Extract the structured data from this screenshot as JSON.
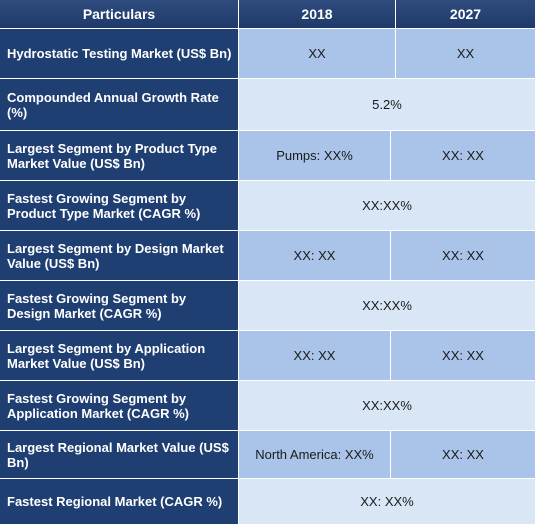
{
  "header": {
    "col_particulars": "Particulars",
    "col_2018": "2018",
    "col_2027": "2027"
  },
  "rows": [
    {
      "label": "Hydrostatic Testing Market (US$ Bn)",
      "v2018": "XX",
      "v2027": "XX"
    },
    {
      "label": "Compounded Annual Growth Rate (%)",
      "merged": "5.2%"
    },
    {
      "label": "Largest Segment by Product Type Market Value (US$ Bn)",
      "v2018": "Pumps: XX%",
      "v2027": "XX: XX"
    },
    {
      "label": "Fastest Growing Segment by Product Type Market (CAGR %)",
      "merged": "XX:XX%"
    },
    {
      "label": "Largest Segment by Design Market Value (US$ Bn)",
      "v2018": "XX: XX",
      "v2027": "XX: XX"
    },
    {
      "label": "Fastest Growing Segment by Design Market (CAGR %)",
      "merged": "XX:XX%"
    },
    {
      "label": "Largest Segment by Application Market Value (US$ Bn)",
      "v2018": "XX: XX",
      "v2027": "XX: XX"
    },
    {
      "label": "Fastest Growing Segment by Application Market (CAGR %)",
      "merged": "XX:XX%"
    },
    {
      "label": "Largest Regional Market Value (US$ Bn)",
      "v2018": "North America: XX%",
      "v2027": "XX: XX"
    },
    {
      "label": "Fastest Regional Market (CAGR %)",
      "merged": "XX: XX%"
    }
  ],
  "colors": {
    "header_bg": "#1f3a6a",
    "label_bg": "#1f3f73",
    "value_dark_bg": "#a9c4e8",
    "value_light_bg": "#d8e6f6"
  }
}
